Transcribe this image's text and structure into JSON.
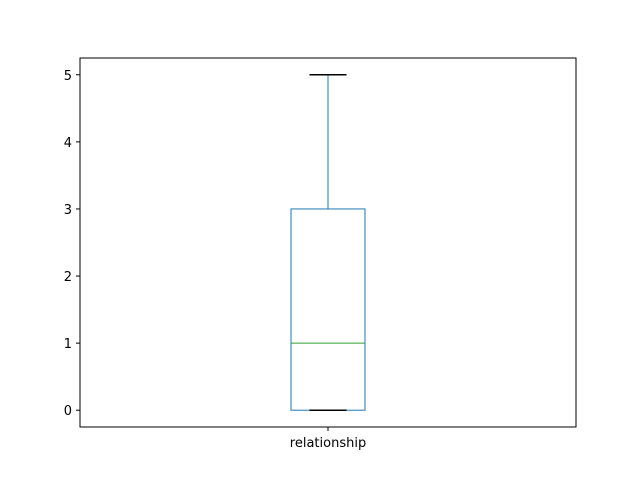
{
  "chart_data": {
    "type": "box",
    "categories": [
      "relationship"
    ],
    "boxes": [
      {
        "category": "relationship",
        "whisker_low": 0,
        "q1": 0,
        "median": 1,
        "q3": 3,
        "whisker_high": 5
      }
    ],
    "ylim": [
      -0.25,
      5.25
    ],
    "yticks": [
      0,
      1,
      2,
      3,
      4,
      5
    ],
    "title": "",
    "xlabel": "",
    "ylabel": "",
    "grid": false,
    "colors": {
      "box": "#1f77b4",
      "median": "#2ca02c",
      "cap": "#000000",
      "axis": "#000000"
    }
  }
}
